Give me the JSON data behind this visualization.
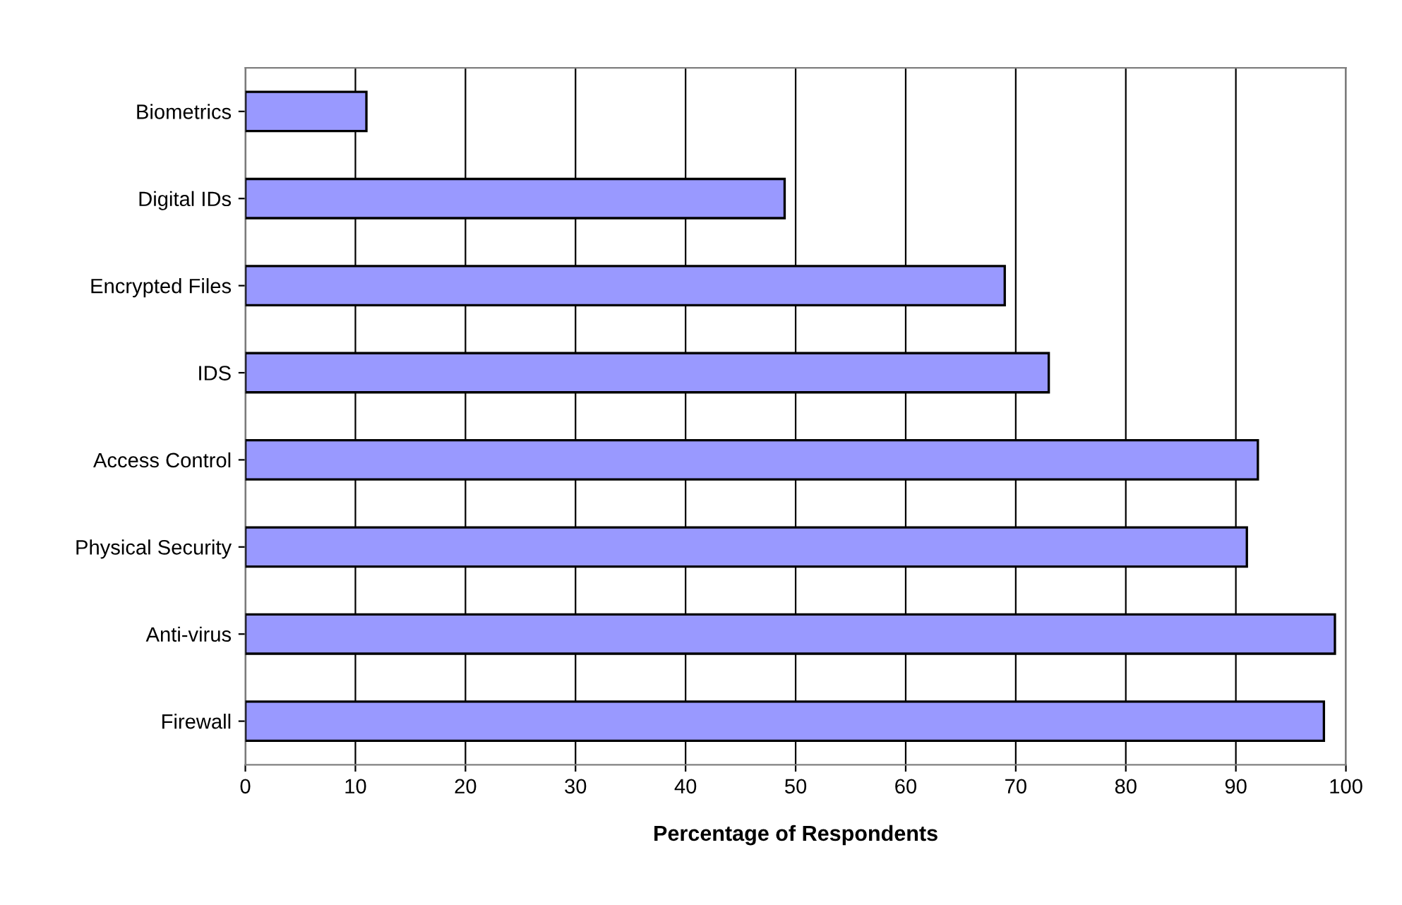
{
  "chart_data": {
    "type": "bar",
    "orientation": "horizontal",
    "xlabel": "Percentage of Respondents",
    "categories": [
      "Biometrics",
      "Digital IDs",
      "Encrypted Files",
      "IDS",
      "Access Control",
      "Physical Security",
      "Anti-virus",
      "Firewall"
    ],
    "values": [
      11,
      49,
      69,
      73,
      92,
      91,
      99,
      98
    ],
    "color": "#9999ff",
    "xlim": [
      0,
      100
    ],
    "xticks": [
      0,
      10,
      20,
      30,
      40,
      50,
      60,
      70,
      80,
      90,
      100
    ],
    "grid": "x"
  }
}
